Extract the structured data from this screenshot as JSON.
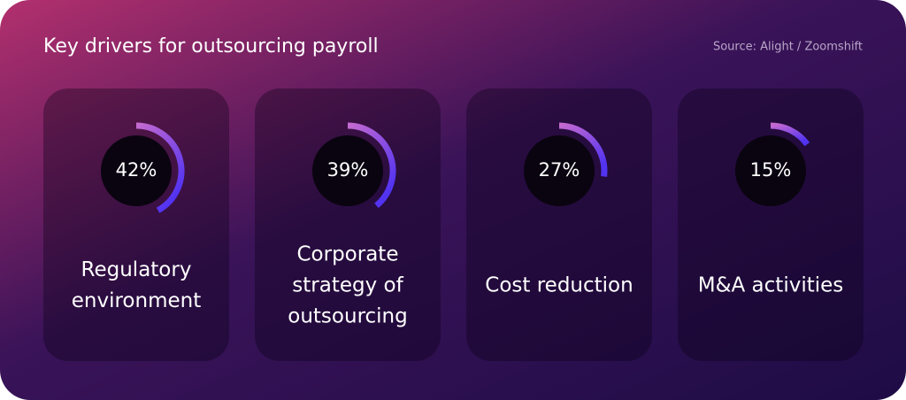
{
  "chart_data": {
    "type": "gauge",
    "title": "Key drivers for outsourcing payroll",
    "source": "Source: Alight / Zoomshift",
    "categories": [
      "Regulatory environment",
      "Corporate strategy of outsourcing",
      "Cost reduction",
      "M&A activities"
    ],
    "values": [
      42,
      39,
      27,
      15
    ],
    "value_labels": [
      "42%",
      "39%",
      "27%",
      "15%"
    ]
  }
}
